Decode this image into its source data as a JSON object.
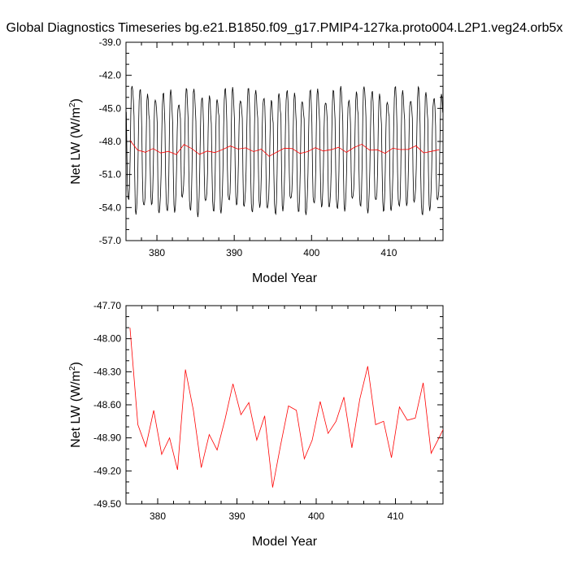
{
  "title": "Global Diagnostics Timeseries bg.e21.B1850.f09_g17.PMIP4-127ka.proto004.L2P1.veg24.orb5x",
  "colors": {
    "monthly": "#000000",
    "annual": "#ff0000"
  },
  "chart_data": [
    {
      "type": "line",
      "xlabel": "Model Year",
      "ylabel_main": "Net LW (W/m",
      "ylabel_sup": "2",
      "ylabel_end": ")",
      "xlim": [
        376,
        417
      ],
      "ylim": [
        -57.0,
        -39.0
      ],
      "xticks": [
        380,
        390,
        400,
        410
      ],
      "xtick_labels": [
        "380",
        "390",
        "400",
        "410"
      ],
      "yticks": [
        -57.0,
        -54.0,
        -51.0,
        -48.0,
        -45.0,
        -42.0,
        -39.0
      ],
      "ytick_labels": [
        "-57.0",
        "-54.0",
        "-51.0",
        "-48.0",
        "-45.0",
        "-42.0",
        "-39.0"
      ],
      "series": [
        {
          "color": "#000000",
          "kind": "monthly",
          "start_x": 376.04,
          "step_x": 0.08333,
          "year_shape": [
            -45.4,
            -50.0,
            -52.7,
            -53.2,
            -53.0,
            -52.0,
            -49.8,
            -46.0,
            -43.5,
            -42.9,
            -43.1,
            -44.2
          ],
          "year_shape_note": "typical monthly cycle; per-year offsets from annual series"
        },
        {
          "color": "#ff0000",
          "kind": "annual",
          "x": [
            376.5,
            377.5,
            378.5,
            379.5,
            380.5,
            381.5,
            382.5,
            383.5,
            384.5,
            385.5,
            386.5,
            387.5,
            388.5,
            389.5,
            390.5,
            391.5,
            392.5,
            393.5,
            394.5,
            395.5,
            396.5,
            397.5,
            398.5,
            399.5,
            400.5,
            401.5,
            402.5,
            403.5,
            404.5,
            405.5,
            406.5,
            407.5,
            408.5,
            409.5,
            410.5,
            411.5,
            412.5,
            413.5,
            414.5,
            415.5,
            416.5
          ],
          "y": [
            -47.9,
            -48.78,
            -48.98,
            -48.65,
            -49.05,
            -48.9,
            -49.19,
            -48.28,
            -48.65,
            -49.17,
            -48.87,
            -49.01,
            -48.73,
            -48.41,
            -48.69,
            -48.58,
            -48.92,
            -48.7,
            -49.35,
            -48.97,
            -48.61,
            -48.65,
            -49.09,
            -48.92,
            -48.57,
            -48.86,
            -48.75,
            -48.53,
            -48.99,
            -48.55,
            -48.25,
            -48.78,
            -48.75,
            -49.08,
            -48.62,
            -48.74,
            -48.72,
            -48.4,
            -49.04,
            -48.9,
            -48.75
          ]
        }
      ]
    },
    {
      "type": "line",
      "xlabel": "Model Year",
      "ylabel_main": "Net LW (W/m",
      "ylabel_sup": "2",
      "ylabel_end": ")",
      "xlim": [
        376,
        416
      ],
      "ylim": [
        -49.5,
        -47.7
      ],
      "xticks": [
        380,
        390,
        400,
        410
      ],
      "xtick_labels": [
        "380",
        "390",
        "400",
        "410"
      ],
      "yticks": [
        -49.5,
        -49.2,
        -48.9,
        -48.6,
        -48.3,
        -48.0,
        -47.7
      ],
      "ytick_labels": [
        "-49.50",
        "-49.20",
        "-48.90",
        "-48.60",
        "-48.30",
        "-48.00",
        "-47.70"
      ],
      "series": [
        {
          "color": "#ff0000",
          "kind": "annual",
          "x": [
            376.5,
            377.5,
            378.5,
            379.5,
            380.5,
            381.5,
            382.5,
            383.5,
            384.5,
            385.5,
            386.5,
            387.5,
            388.5,
            389.5,
            390.5,
            391.5,
            392.5,
            393.5,
            394.5,
            395.5,
            396.5,
            397.5,
            398.5,
            399.5,
            400.5,
            401.5,
            402.5,
            403.5,
            404.5,
            405.5,
            406.5,
            407.5,
            408.5,
            409.5,
            410.5,
            411.5,
            412.5,
            413.5,
            414.5,
            415.5,
            416.5
          ],
          "y": [
            -47.9,
            -48.78,
            -48.98,
            -48.65,
            -49.05,
            -48.9,
            -49.19,
            -48.28,
            -48.65,
            -49.17,
            -48.87,
            -49.01,
            -48.73,
            -48.41,
            -48.69,
            -48.58,
            -48.92,
            -48.7,
            -49.35,
            -48.97,
            -48.61,
            -48.65,
            -49.09,
            -48.92,
            -48.57,
            -48.86,
            -48.75,
            -48.53,
            -48.99,
            -48.55,
            -48.25,
            -48.78,
            -48.75,
            -49.08,
            -48.62,
            -48.74,
            -48.72,
            -48.4,
            -49.04,
            -48.9,
            -48.75
          ]
        }
      ]
    }
  ]
}
